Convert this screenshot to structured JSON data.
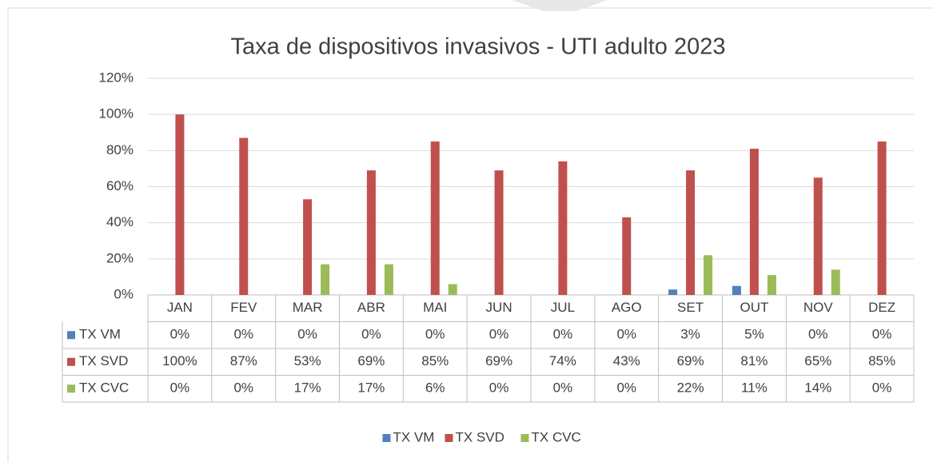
{
  "chart_data": {
    "type": "bar",
    "title": "Taxa de dispositivos invasivos - UTI adulto 2023",
    "categories": [
      "JAN",
      "FEV",
      "MAR",
      "ABR",
      "MAI",
      "JUN",
      "JUL",
      "AGO",
      "SET",
      "OUT",
      "NOV",
      "DEZ"
    ],
    "series": [
      {
        "name": "TX VM",
        "color": "#4f81bd",
        "values": [
          0,
          0,
          0,
          0,
          0,
          0,
          0,
          0,
          3,
          5,
          0,
          0
        ],
        "value_labels": [
          "0%",
          "0%",
          "0%",
          "0%",
          "0%",
          "0%",
          "0%",
          "0%",
          "3%",
          "5%",
          "0%",
          "0%"
        ]
      },
      {
        "name": "TX SVD",
        "color": "#c0504d",
        "values": [
          100,
          87,
          53,
          69,
          85,
          69,
          74,
          43,
          69,
          81,
          65,
          85
        ],
        "value_labels": [
          "100%",
          "87%",
          "53%",
          "69%",
          "85%",
          "69%",
          "74%",
          "43%",
          "69%",
          "81%",
          "65%",
          "85%"
        ]
      },
      {
        "name": "TX CVC",
        "color": "#9bbb59",
        "values": [
          0,
          0,
          17,
          17,
          6,
          0,
          0,
          0,
          22,
          11,
          14,
          0
        ],
        "value_labels": [
          "0%",
          "0%",
          "17%",
          "17%",
          "6%",
          "0%",
          "0%",
          "0%",
          "22%",
          "11%",
          "14%",
          "0%"
        ]
      }
    ],
    "ylim": [
      0,
      120
    ],
    "yticks": [
      {
        "value": 0,
        "label": "0%"
      },
      {
        "value": 20,
        "label": "20%"
      },
      {
        "value": 40,
        "label": "40%"
      },
      {
        "value": 60,
        "label": "60%"
      },
      {
        "value": 80,
        "label": "80%"
      },
      {
        "value": 100,
        "label": "100%"
      },
      {
        "value": 120,
        "label": "120%"
      }
    ],
    "grid": true,
    "legend": "bottom"
  }
}
